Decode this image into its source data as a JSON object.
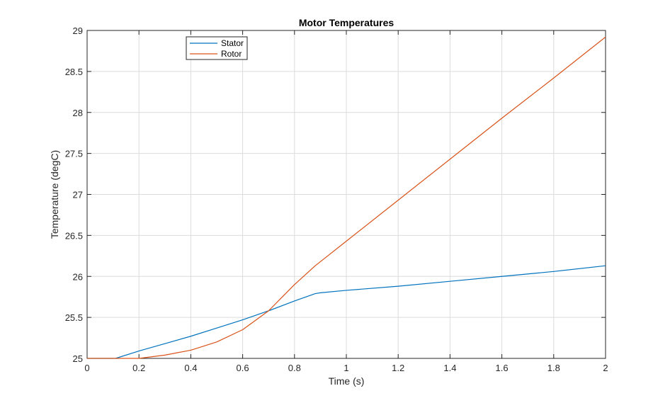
{
  "chart_data": {
    "type": "line",
    "title": "Motor Temperatures",
    "xlabel": "Time (s)",
    "ylabel": "Temperature (degC)",
    "xlim": [
      0,
      2
    ],
    "ylim": [
      25,
      29
    ],
    "xticks": [
      0,
      0.2,
      0.4,
      0.6,
      0.8,
      1,
      1.2,
      1.4,
      1.6,
      1.8,
      2
    ],
    "xtick_labels": [
      "0",
      "0.2",
      "0.4",
      "0.6",
      "0.8",
      "1",
      "1.2",
      "1.4",
      "1.6",
      "1.8",
      "2"
    ],
    "yticks": [
      25,
      25.5,
      26,
      26.5,
      27,
      27.5,
      28,
      28.5,
      29
    ],
    "ytick_labels": [
      "25",
      "25.5",
      "26",
      "26.5",
      "27",
      "27.5",
      "28",
      "28.5",
      "29"
    ],
    "grid": true,
    "legend_position": "top-left",
    "series": [
      {
        "name": "Stator",
        "color": "#0072BD",
        "x": [
          0,
          0.11,
          0.2,
          0.3,
          0.4,
          0.5,
          0.6,
          0.7,
          0.8,
          0.88,
          0.9,
          1.0,
          1.2,
          1.4,
          1.6,
          1.8,
          2.0
        ],
        "y": [
          25.0,
          25.0,
          25.09,
          25.18,
          25.27,
          25.37,
          25.47,
          25.58,
          25.7,
          25.79,
          25.8,
          25.83,
          25.88,
          25.94,
          26.0,
          26.06,
          26.13
        ]
      },
      {
        "name": "Rotor",
        "color": "#D95319",
        "x": [
          0,
          0.2,
          0.3,
          0.4,
          0.5,
          0.6,
          0.7,
          0.75,
          0.8,
          0.88,
          0.9,
          1.0,
          1.2,
          1.4,
          1.6,
          1.8,
          2.0
        ],
        "y": [
          25.0,
          25.0,
          25.04,
          25.1,
          25.2,
          25.35,
          25.58,
          25.74,
          25.9,
          26.13,
          26.18,
          26.43,
          26.93,
          27.43,
          27.93,
          28.42,
          28.92
        ]
      }
    ]
  }
}
